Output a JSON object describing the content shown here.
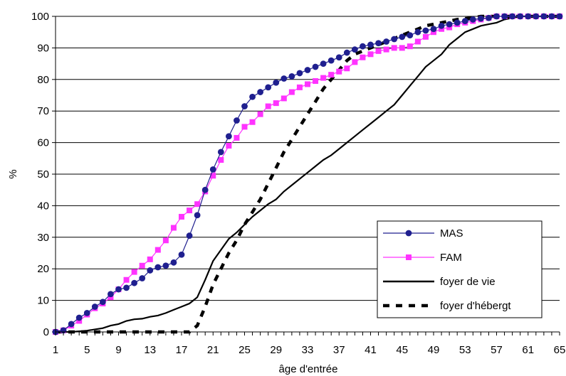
{
  "chart_data": {
    "type": "line",
    "xlabel": "âge d'entrée",
    "ylabel": "%",
    "x_ticks": [
      "1",
      "5",
      "9",
      "13",
      "17",
      "21",
      "25",
      "29",
      "33",
      "37",
      "41",
      "45",
      "49",
      "53",
      "57",
      "61",
      "65"
    ],
    "y_ticks": [
      "0",
      "10",
      "20",
      "30",
      "40",
      "50",
      "60",
      "70",
      "80",
      "90",
      "100"
    ],
    "xlim": [
      1,
      65
    ],
    "ylim": [
      0,
      100
    ],
    "grid": "horizontal",
    "legend_position": "bottom-right",
    "series": [
      {
        "name": "MAS",
        "color": "#1f1f8f",
        "marker": "circle",
        "line": "solid",
        "x": [
          1,
          2,
          3,
          4,
          5,
          6,
          7,
          8,
          9,
          10,
          11,
          12,
          13,
          14,
          15,
          16,
          17,
          18,
          19,
          20,
          21,
          22,
          23,
          24,
          25,
          26,
          27,
          28,
          29,
          30,
          31,
          32,
          33,
          34,
          35,
          36,
          37,
          38,
          39,
          40,
          41,
          42,
          43,
          44,
          45,
          46,
          47,
          48,
          49,
          50,
          51,
          52,
          53,
          54,
          55,
          56,
          57,
          58,
          59,
          60,
          61,
          62,
          63,
          64,
          65
        ],
        "values": [
          0,
          0.5,
          2.5,
          4.5,
          6,
          8,
          9.5,
          12,
          13.5,
          14,
          15.5,
          17,
          19.5,
          20.5,
          21,
          22,
          24.5,
          30.5,
          37,
          45,
          51.5,
          57,
          62,
          67,
          71.5,
          74.5,
          76,
          77.5,
          79,
          80.3,
          81,
          82,
          83,
          84,
          85,
          86,
          87,
          88.5,
          89.5,
          90.5,
          91,
          91.5,
          92,
          92.8,
          93.5,
          94,
          95,
          95.5,
          96,
          97,
          97.5,
          98,
          98.5,
          99,
          99.3,
          99.5,
          100,
          100,
          100,
          100,
          100,
          100,
          100,
          100,
          100
        ]
      },
      {
        "name": "FAM",
        "color": "#ff33ff",
        "marker": "square",
        "line": "solid",
        "x": [
          1,
          2,
          3,
          4,
          5,
          6,
          7,
          8,
          9,
          10,
          11,
          12,
          13,
          14,
          15,
          16,
          17,
          18,
          19,
          20,
          21,
          22,
          23,
          24,
          25,
          26,
          27,
          28,
          29,
          30,
          31,
          32,
          33,
          34,
          35,
          36,
          37,
          38,
          39,
          40,
          41,
          42,
          43,
          44,
          45,
          46,
          47,
          48,
          49,
          50,
          51,
          52,
          53,
          54,
          55,
          56,
          57,
          58,
          59,
          60,
          61,
          62,
          63,
          64,
          65
        ],
        "values": [
          0,
          0.5,
          2,
          3.5,
          5.5,
          7.5,
          9,
          11,
          13.5,
          16.5,
          19,
          21,
          23,
          26,
          29,
          33,
          36.5,
          38.5,
          40.5,
          44.5,
          49.5,
          54.5,
          59,
          61.5,
          65,
          66.5,
          69,
          71.5,
          72.5,
          74,
          76,
          77.5,
          78.5,
          79.5,
          80.5,
          81.5,
          82.5,
          83.5,
          85.5,
          87,
          88,
          89,
          89.5,
          90,
          90,
          90.5,
          92,
          93.5,
          95,
          96,
          96.5,
          97.5,
          98,
          98.5,
          99,
          99.5,
          100,
          100,
          100,
          100,
          100,
          100,
          100,
          100,
          100
        ]
      },
      {
        "name": "foyer de vie",
        "color": "#000000",
        "marker": "none",
        "line": "solid",
        "x": [
          1,
          2,
          3,
          4,
          5,
          6,
          7,
          8,
          9,
          10,
          11,
          12,
          13,
          14,
          15,
          16,
          17,
          18,
          19,
          20,
          21,
          22,
          23,
          24,
          25,
          26,
          27,
          28,
          29,
          30,
          31,
          32,
          33,
          34,
          35,
          36,
          37,
          38,
          39,
          40,
          41,
          42,
          43,
          44,
          45,
          46,
          47,
          48,
          49,
          50,
          51,
          52,
          53,
          54,
          55,
          56,
          57,
          58,
          59,
          60,
          61,
          62,
          63,
          64,
          65
        ],
        "values": [
          0,
          0,
          0,
          0.2,
          0.4,
          0.8,
          1.2,
          2,
          2.5,
          3.5,
          4,
          4.2,
          4.8,
          5.2,
          6,
          7,
          8,
          9,
          11,
          16.5,
          22.5,
          26,
          29.5,
          31.5,
          34,
          36.5,
          38.5,
          40.5,
          42,
          44.5,
          46.5,
          48.5,
          50.5,
          52.5,
          54.5,
          56,
          58,
          60,
          62,
          64,
          66,
          68,
          70,
          72,
          75,
          78,
          81,
          84,
          86,
          88,
          91,
          93,
          95,
          96,
          97,
          97.5,
          98,
          99,
          99.5,
          100,
          100,
          100,
          100,
          100,
          100
        ]
      },
      {
        "name": "foyer d'hébergt",
        "color": "#000000",
        "marker": "none",
        "line": "dashed",
        "x": [
          1,
          4,
          7,
          10,
          13,
          16,
          18,
          19,
          20,
          21,
          22,
          23,
          24,
          25,
          26,
          27,
          28,
          29,
          30,
          31,
          32,
          33,
          34,
          35,
          36,
          37,
          38,
          39,
          40,
          41,
          42,
          43,
          44,
          45,
          46,
          47,
          48,
          49,
          50,
          51,
          52,
          53,
          54,
          55,
          56,
          57,
          58,
          59,
          60,
          61,
          62,
          63,
          64,
          65
        ],
        "values": [
          0,
          0,
          0,
          0,
          0,
          0,
          0,
          2,
          8,
          15,
          20,
          25,
          29,
          34,
          38,
          42,
          47,
          52,
          57,
          61,
          65,
          69,
          73,
          77,
          80,
          83,
          86,
          88,
          89,
          90,
          91,
          92,
          93,
          94,
          95,
          96,
          97,
          97.5,
          98,
          98.5,
          99,
          99.3,
          99.5,
          100,
          100,
          100,
          100,
          100,
          100,
          100,
          100,
          100,
          100,
          100
        ]
      }
    ]
  }
}
